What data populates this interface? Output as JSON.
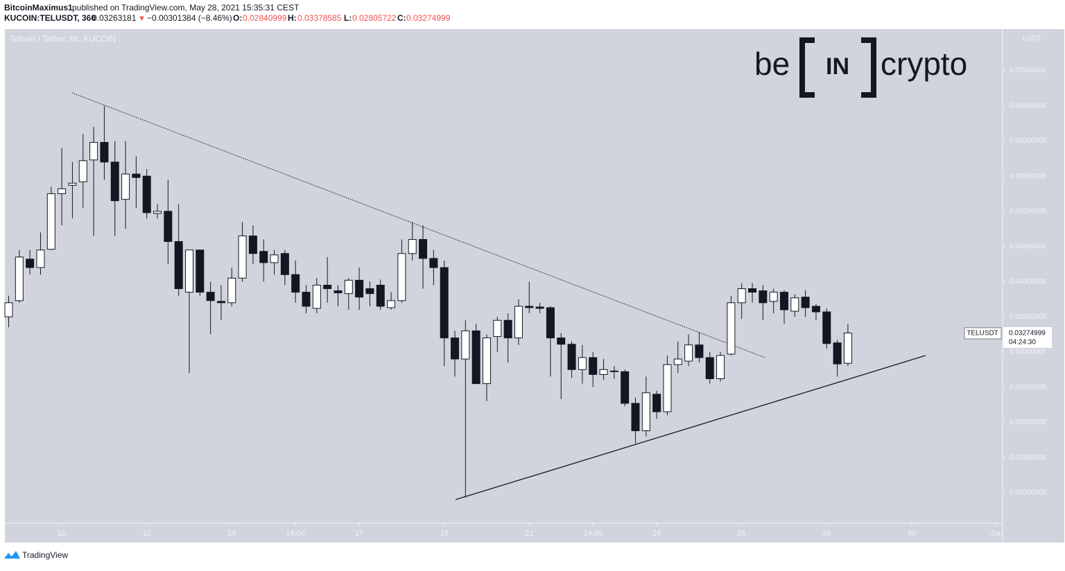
{
  "header": {
    "publisher": "BitcoinMaximus1",
    "published": "published on TradingView.com, May 28, 2021 15:35:31 CEST",
    "symbol": "KUCOIN:TELUSDT, 360",
    "last": "0.03263181",
    "arrow": "▼",
    "change": "−0.00301384 (−8.46%)",
    "o_label": "O:",
    "o": "0.02840999",
    "h_label": "H:",
    "h": "0.03378585",
    "l_label": "L:",
    "l": "0.02805722",
    "c_label": "C:",
    "c": "0.03274999"
  },
  "logo": {
    "left": "be",
    "middle": "IN",
    "right": "crypto"
  },
  "footer": "TradingView",
  "chart_data": {
    "type": "candlestick",
    "title": "Telcoin / Tether, 6h, KUCOIN",
    "currency": "USDT",
    "up_color": "#ffffff",
    "down_color": "#131722",
    "x": [
      8.75,
      9,
      9.25,
      9.5,
      9.75,
      10,
      10.25,
      10.5,
      10.75,
      11,
      11.25,
      11.5,
      11.75,
      12,
      12.25,
      12.5,
      12.75,
      13,
      13.25,
      13.5,
      13.75,
      14,
      14.25,
      14.5,
      14.75,
      15,
      15.25,
      15.5,
      15.75,
      16,
      16.25,
      16.5,
      16.75,
      17,
      17.25,
      17.5,
      17.75,
      18,
      18.25,
      18.5,
      18.75,
      19,
      19.25,
      19.5,
      19.75,
      20,
      20.25,
      20.5,
      20.75,
      21,
      21.25,
      21.5,
      21.75,
      22,
      22.25,
      22.5,
      22.75,
      23,
      23.25,
      23.5,
      23.75,
      24,
      24.25,
      24.5,
      24.75,
      25,
      25.25,
      25.5,
      25.75,
      26,
      26.25,
      26.5,
      26.75,
      27,
      27.25,
      27.5,
      27.75,
      28,
      28.25,
      28.5
    ],
    "open": [
      0.035,
      0.0373,
      0.0432,
      0.042,
      0.0446,
      0.0525,
      0.0537,
      0.0542,
      0.0573,
      0.0598,
      0.057,
      0.0517,
      0.0553,
      0.055,
      0.0497,
      0.05,
      0.0457,
      0.0385,
      0.0445,
      0.0385,
      0.0372,
      0.037,
      0.0405,
      0.0465,
      0.0443,
      0.0427,
      0.044,
      0.041,
      0.0385,
      0.0362,
      0.0395,
      0.0387,
      0.0383,
      0.0402,
      0.039,
      0.0395,
      0.0363,
      0.0373,
      0.044,
      0.046,
      0.0433,
      0.042,
      0.032,
      0.029,
      0.033,
      0.0255,
      0.0322,
      0.0345,
      0.032,
      0.0365,
      0.0364,
      0.0363,
      0.032,
      0.0311,
      0.0275,
      0.0292,
      0.0268,
      0.0273,
      0.0272,
      0.0227,
      0.0188,
      0.024,
      0.0215,
      0.0282,
      0.0287,
      0.031,
      0.0292,
      0.0262,
      0.0297,
      0.037,
      0.039,
      0.0387,
      0.0372,
      0.0385,
      0.0358,
      0.0378,
      0.0365,
      0.0357,
      0.0313,
      0.0284
    ],
    "high": [
      0.038,
      0.0445,
      0.0445,
      0.047,
      0.0535,
      0.059,
      0.057,
      0.061,
      0.062,
      0.065,
      0.06,
      0.06,
      0.0578,
      0.056,
      0.051,
      0.0545,
      0.051,
      0.0445,
      0.0445,
      0.04,
      0.0395,
      0.042,
      0.0485,
      0.048,
      0.046,
      0.0445,
      0.0445,
      0.043,
      0.0395,
      0.0405,
      0.0435,
      0.0395,
      0.0405,
      0.042,
      0.04,
      0.0403,
      0.0385,
      0.046,
      0.0485,
      0.048,
      0.0445,
      0.043,
      0.033,
      0.0345,
      0.034,
      0.0325,
      0.035,
      0.0355,
      0.0375,
      0.04,
      0.037,
      0.0365,
      0.0327,
      0.0315,
      0.031,
      0.03,
      0.029,
      0.028,
      0.0275,
      0.0235,
      0.0265,
      0.0245,
      0.0295,
      0.0315,
      0.0325,
      0.0328,
      0.03,
      0.03,
      0.038,
      0.0398,
      0.0398,
      0.0395,
      0.039,
      0.0388,
      0.0382,
      0.0388,
      0.0368,
      0.0362,
      0.0317,
      0.034
    ],
    "low": [
      0.0335,
      0.037,
      0.041,
      0.041,
      0.0445,
      0.048,
      0.049,
      0.0505,
      0.0465,
      0.0545,
      0.0465,
      0.0475,
      0.0505,
      0.049,
      0.049,
      0.0425,
      0.038,
      0.027,
      0.038,
      0.0325,
      0.0345,
      0.0365,
      0.04,
      0.0425,
      0.04,
      0.041,
      0.0395,
      0.037,
      0.0355,
      0.0355,
      0.037,
      0.0365,
      0.036,
      0.036,
      0.0365,
      0.036,
      0.036,
      0.037,
      0.043,
      0.039,
      0.0395,
      0.028,
      0.0265,
      0.0093,
      0.0255,
      0.023,
      0.03,
      0.0285,
      0.031,
      0.0355,
      0.0355,
      0.0265,
      0.0233,
      0.0263,
      0.0255,
      0.025,
      0.026,
      0.0262,
      0.0223,
      0.017,
      0.018,
      0.0205,
      0.021,
      0.027,
      0.028,
      0.0285,
      0.0255,
      0.0258,
      0.0295,
      0.0347,
      0.037,
      0.0345,
      0.0355,
      0.034,
      0.035,
      0.035,
      0.0345,
      0.0305,
      0.0265,
      0.028
    ],
    "close": [
      0.037,
      0.0435,
      0.042,
      0.0445,
      0.0525,
      0.0532,
      0.054,
      0.0572,
      0.0598,
      0.057,
      0.0515,
      0.0553,
      0.0548,
      0.0498,
      0.05,
      0.0457,
      0.039,
      0.0445,
      0.0385,
      0.0373,
      0.037,
      0.0405,
      0.0465,
      0.044,
      0.0427,
      0.0438,
      0.041,
      0.0385,
      0.0365,
      0.0395,
      0.039,
      0.0384,
      0.0402,
      0.0378,
      0.0383,
      0.0365,
      0.0373,
      0.044,
      0.046,
      0.0433,
      0.042,
      0.032,
      0.029,
      0.033,
      0.0255,
      0.032,
      0.0345,
      0.032,
      0.0365,
      0.0363,
      0.0362,
      0.032,
      0.0311,
      0.0275,
      0.0292,
      0.0268,
      0.0275,
      0.0272,
      0.0227,
      0.0188,
      0.0242,
      0.0215,
      0.0282,
      0.029,
      0.031,
      0.0292,
      0.0262,
      0.0295,
      0.037,
      0.039,
      0.0385,
      0.037,
      0.0385,
      0.036,
      0.0377,
      0.0363,
      0.0357,
      0.0312,
      0.0283,
      0.0327
    ],
    "xlim": [
      8.66,
      32.14
    ],
    "xticks": [
      10,
      12,
      14,
      {
        "value": 15.5,
        "label": "14:00"
      },
      17,
      19,
      21,
      {
        "value": 22.5,
        "label": "14:00"
      },
      24,
      26,
      28,
      30,
      {
        "value": 32,
        "label": "Jun"
      }
    ],
    "ylim": [
      0.00566,
      0.0759
    ],
    "yticks": [
      {
        "value": 0.01,
        "label": "0.01000000"
      },
      {
        "value": 0.015,
        "label": "0.01500000"
      },
      {
        "value": 0.02,
        "label": "0.02000000"
      },
      {
        "value": 0.025,
        "label": "0.02500000"
      },
      {
        "value": 0.03,
        "label": "0.03000000"
      },
      {
        "value": 0.035,
        "label": "0.03500000"
      },
      {
        "value": 0.04,
        "label": "0.04000000"
      },
      {
        "value": 0.045,
        "label": "0.04500000"
      },
      {
        "value": 0.05,
        "label": "0.05000000"
      },
      {
        "value": 0.055,
        "label": "0.05500000"
      },
      {
        "value": 0.06,
        "label": "0.06000000"
      },
      {
        "value": 0.065,
        "label": "0.06500000"
      },
      {
        "value": 0.07,
        "label": "0.07000000"
      }
    ],
    "price_tag": {
      "symbol": "TELUSDT",
      "price": "0.03274999",
      "countdown": "04:24:30"
    }
  }
}
